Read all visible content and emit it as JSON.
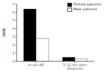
{
  "chart_data": {
    "type": "bar",
    "categories": [
      "Acute NE",
      "3–12 mo after diagnosis"
    ],
    "series": [
      {
        "name": "Female patients",
        "color": "#000000",
        "values": [
          6.4,
          0.5
        ]
      },
      {
        "name": "Male patients",
        "color": "#ffffff",
        "values": [
          2.8,
          0.3
        ]
      }
    ],
    "ylabel": "SMR",
    "ylim": [
      0,
      7
    ],
    "yticks": [
      0,
      1,
      2,
      3,
      4,
      5,
      6,
      7
    ],
    "legend": "upper right",
    "grid": false
  }
}
